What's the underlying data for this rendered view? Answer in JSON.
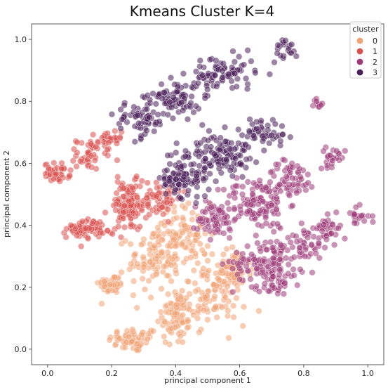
{
  "chart_data": {
    "type": "scatter",
    "title": "Kmeans Cluster K=4",
    "xlabel": "principal component 1",
    "ylabel": "principal component 2",
    "xlim": [
      -0.05,
      1.05
    ],
    "ylim": [
      -0.05,
      1.05
    ],
    "xticks": [
      "0.0",
      "0.2",
      "0.4",
      "0.6",
      "0.8",
      "1.0"
    ],
    "yticks": [
      "0.0",
      "0.2",
      "0.4",
      "0.6",
      "0.8",
      "1.0"
    ],
    "grid": false,
    "legend": {
      "title": "cluster",
      "placement": "top-right"
    },
    "series": [
      {
        "name": "0",
        "color": "#f0a274",
        "clusters": [
          {
            "x": 0.27,
            "y": 0.03,
            "sx": 0.04,
            "sy": 0.02,
            "n": 60
          },
          {
            "x": 0.4,
            "y": 0.11,
            "sx": 0.03,
            "sy": 0.05,
            "n": 80
          },
          {
            "x": 0.2,
            "y": 0.21,
            "sx": 0.02,
            "sy": 0.015,
            "n": 40
          },
          {
            "x": 0.33,
            "y": 0.29,
            "sx": 0.04,
            "sy": 0.05,
            "n": 90
          },
          {
            "x": 0.43,
            "y": 0.37,
            "sx": 0.04,
            "sy": 0.05,
            "n": 90
          },
          {
            "x": 0.52,
            "y": 0.18,
            "sx": 0.05,
            "sy": 0.05,
            "n": 110
          },
          {
            "x": 0.58,
            "y": 0.25,
            "sx": 0.03,
            "sy": 0.04,
            "n": 50
          }
        ]
      },
      {
        "name": "1",
        "color": "#d9504f",
        "clusters": [
          {
            "x": 0.03,
            "y": 0.57,
            "sx": 0.02,
            "sy": 0.015,
            "n": 40
          },
          {
            "x": 0.12,
            "y": 0.39,
            "sx": 0.03,
            "sy": 0.015,
            "n": 70
          },
          {
            "x": 0.13,
            "y": 0.63,
            "sx": 0.02,
            "sy": 0.025,
            "n": 40
          },
          {
            "x": 0.19,
            "y": 0.67,
            "sx": 0.02,
            "sy": 0.02,
            "n": 30
          },
          {
            "x": 0.25,
            "y": 0.46,
            "sx": 0.03,
            "sy": 0.04,
            "n": 110
          },
          {
            "x": 0.34,
            "y": 0.49,
            "sx": 0.04,
            "sy": 0.03,
            "n": 60
          }
        ]
      },
      {
        "name": "2",
        "color": "#9c3a78",
        "clusters": [
          {
            "x": 0.53,
            "y": 0.42,
            "sx": 0.03,
            "sy": 0.03,
            "n": 60
          },
          {
            "x": 0.65,
            "y": 0.47,
            "sx": 0.05,
            "sy": 0.04,
            "n": 110
          },
          {
            "x": 0.76,
            "y": 0.55,
            "sx": 0.04,
            "sy": 0.03,
            "n": 60
          },
          {
            "x": 0.68,
            "y": 0.28,
            "sx": 0.05,
            "sy": 0.04,
            "n": 110
          },
          {
            "x": 0.8,
            "y": 0.34,
            "sx": 0.04,
            "sy": 0.04,
            "n": 60
          },
          {
            "x": 0.88,
            "y": 0.39,
            "sx": 0.02,
            "sy": 0.02,
            "n": 30
          },
          {
            "x": 0.89,
            "y": 0.62,
            "sx": 0.02,
            "sy": 0.015,
            "n": 25
          },
          {
            "x": 0.84,
            "y": 0.79,
            "sx": 0.01,
            "sy": 0.01,
            "n": 10
          },
          {
            "x": 0.97,
            "y": 0.43,
            "sx": 0.02,
            "sy": 0.015,
            "n": 20
          },
          {
            "x": 0.72,
            "y": 0.21,
            "sx": 0.03,
            "sy": 0.02,
            "n": 20
          }
        ]
      },
      {
        "name": "3",
        "color": "#4b1f5a",
        "clusters": [
          {
            "x": 0.29,
            "y": 0.74,
            "sx": 0.04,
            "sy": 0.03,
            "n": 60
          },
          {
            "x": 0.4,
            "y": 0.81,
            "sx": 0.04,
            "sy": 0.03,
            "n": 80
          },
          {
            "x": 0.55,
            "y": 0.89,
            "sx": 0.05,
            "sy": 0.03,
            "n": 80
          },
          {
            "x": 0.74,
            "y": 0.97,
            "sx": 0.02,
            "sy": 0.02,
            "n": 20
          },
          {
            "x": 0.44,
            "y": 0.57,
            "sx": 0.04,
            "sy": 0.04,
            "n": 90
          },
          {
            "x": 0.55,
            "y": 0.63,
            "sx": 0.04,
            "sy": 0.03,
            "n": 90
          },
          {
            "x": 0.67,
            "y": 0.7,
            "sx": 0.04,
            "sy": 0.025,
            "n": 50
          },
          {
            "x": 0.39,
            "y": 0.54,
            "sx": 0.02,
            "sy": 0.02,
            "n": 30
          }
        ]
      }
    ]
  }
}
